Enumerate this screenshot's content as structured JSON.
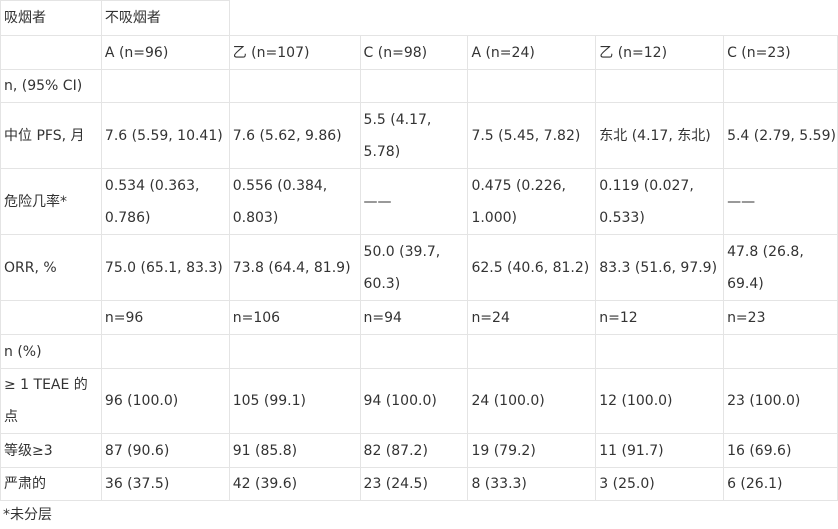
{
  "header": {
    "row1": [
      "吸烟者",
      "不吸烟者"
    ],
    "arms": [
      "A (n=96)",
      "乙 (n=107)",
      "C (n=98)",
      "A (n=24)",
      "乙 (n=12)",
      "C (n=23)"
    ]
  },
  "rows": [
    {
      "label": "n, (95% CI)",
      "cells": [
        "",
        "",
        "",
        "",
        "",
        ""
      ]
    },
    {
      "label": "中位 PFS, 月",
      "cells": [
        "7.6 (5.59, 10.41)",
        "7.6 (5.62, 9.86)",
        "5.5 (4.17, 5.78)",
        "7.5 (5.45, 7.82)",
        "东北 (4.17, 东北)",
        "5.4 (2.79, 5.59)"
      ]
    },
    {
      "label": "危险几率*",
      "cells": [
        "0.534 (0.363, 0.786)",
        "0.556 (0.384, 0.803)",
        "——",
        "0.475 (0.226, 1.000)",
        "0.119 (0.027, 0.533)",
        "——"
      ]
    },
    {
      "label": "ORR, %",
      "cells": [
        "75.0 (65.1, 83.3)",
        "73.8 (64.4, 81.9)",
        "50.0 (39.7, 60.3)",
        "62.5 (40.6, 81.2)",
        "83.3 (51.6, 97.9)",
        "47.8 (26.8, 69.4)"
      ]
    },
    {
      "label": "",
      "cells": [
        "n=96",
        "n=106",
        "n=94",
        "n=24",
        "n=12",
        "n=23"
      ]
    },
    {
      "label": "n (%)",
      "cells": [
        "",
        "",
        "",
        "",
        "",
        ""
      ]
    },
    {
      "label": "≥ 1 TEAE 的点",
      "cells": [
        "96 (100.0)",
        "105 (99.1)",
        "94 (100.0)",
        "24 (100.0)",
        "12 (100.0)",
        "23 (100.0)"
      ]
    },
    {
      "label": "等级≥3",
      "cells": [
        "87 (90.6)",
        "91 (85.8)",
        "82 (87.2)",
        "19 (79.2)",
        "11 (91.7)",
        "16 (69.6)"
      ]
    },
    {
      "label": "严肃的",
      "cells": [
        "36 (37.5)",
        "42 (39.6)",
        "23 (24.5)",
        "8 (33.3)",
        "3 (25.0)",
        "6 (26.1)"
      ]
    }
  ],
  "footnote": "*未分层"
}
